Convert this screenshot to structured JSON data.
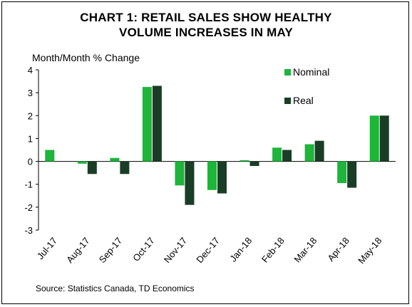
{
  "chart_data": {
    "type": "bar",
    "title": [
      "CHART 1: RETAIL SALES SHOW HEALTHY",
      "VOLUME INCREASES IN MAY"
    ],
    "ylabel": "Month/Month % Change",
    "xlabel": "",
    "ylim": [
      -3,
      4
    ],
    "yticks": [
      "4",
      "3",
      "2",
      "1",
      "0",
      "-1",
      "-2",
      "-3"
    ],
    "categories": [
      "Jul-17",
      "Aug-17",
      "Sep-17",
      "Oct-17",
      "Nov-17",
      "Dec-17",
      "Jan-18",
      "Feb-18",
      "Mar-18",
      "Apr-18",
      "May-18"
    ],
    "series": [
      {
        "name": "Nominal",
        "color": "#1db53a",
        "values": [
          0.5,
          -0.1,
          0.15,
          3.25,
          -1.05,
          -1.25,
          0.05,
          0.6,
          0.75,
          -0.95,
          2.0
        ]
      },
      {
        "name": "Real",
        "color": "#1a3d26",
        "values": [
          0.0,
          -0.55,
          -0.55,
          3.3,
          -1.9,
          -1.4,
          -0.2,
          0.5,
          0.9,
          -1.15,
          2.0
        ]
      }
    ],
    "legend_position": "top-right",
    "grid": false,
    "source": "Source: Statistics Canada, TD Economics"
  }
}
